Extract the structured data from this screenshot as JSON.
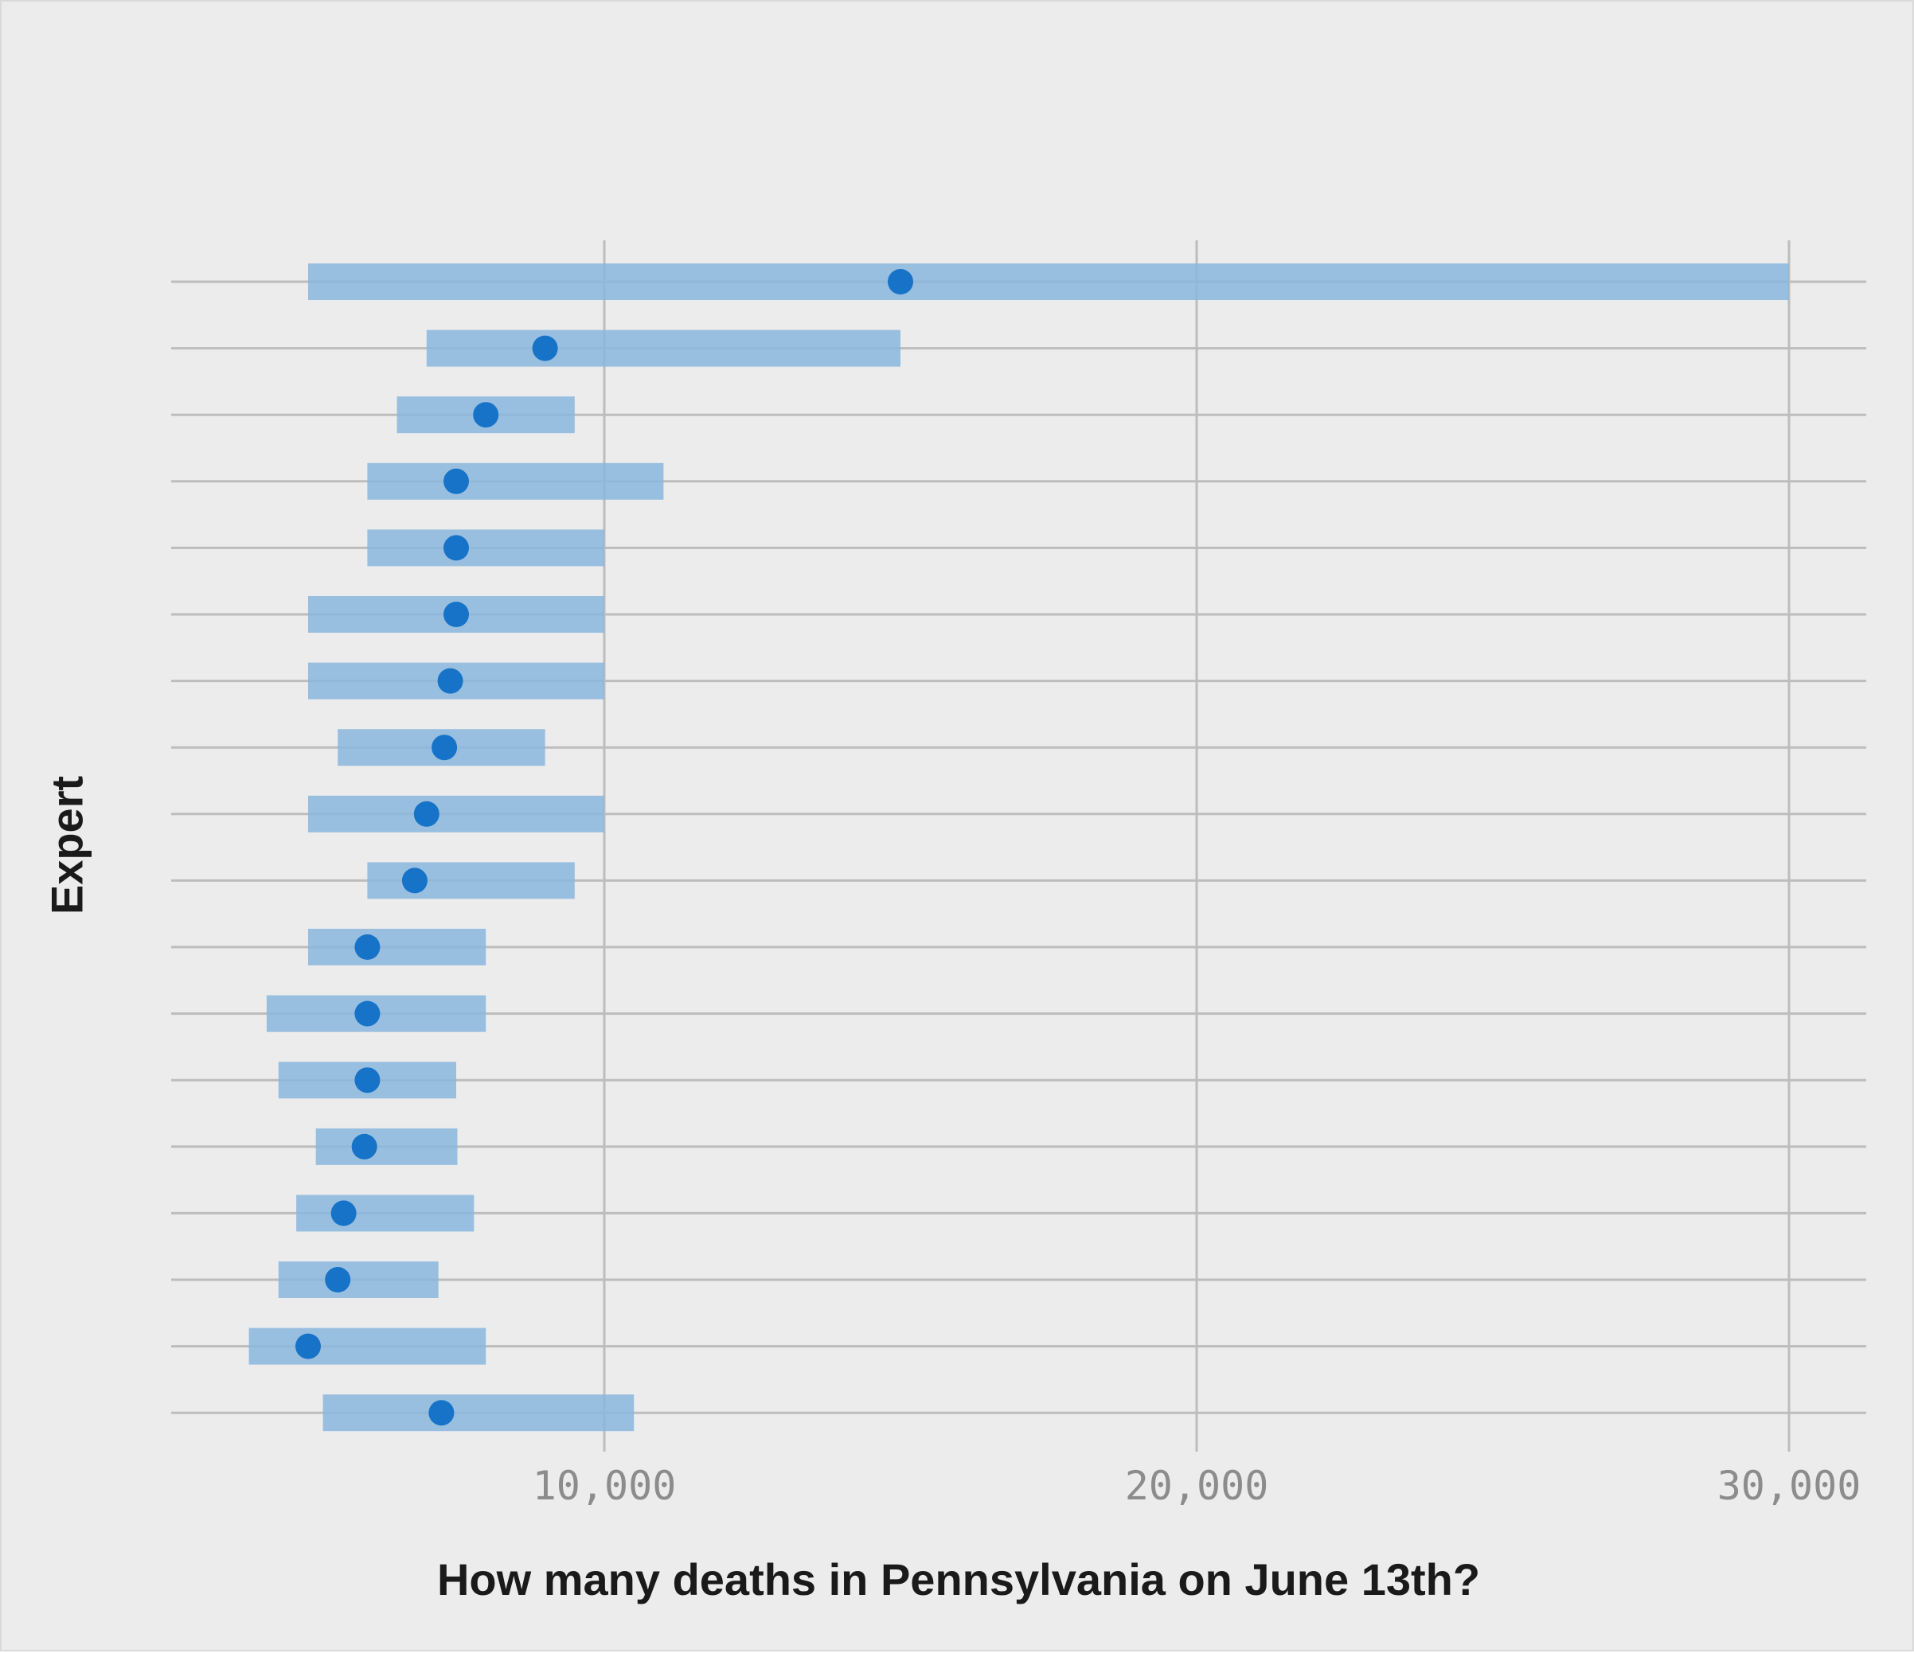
{
  "chart_data": {
    "type": "range-dot",
    "xlabel": "How many deaths in Pennsylvania on June 13th?",
    "ylabel": "Expert",
    "x_ticks": [
      10000,
      20000,
      30000
    ],
    "x_tick_labels": [
      "10,000",
      "20,000",
      "30,000"
    ],
    "xlim": [
      2700,
      31300
    ],
    "grid": "on",
    "colors": {
      "range": "#8ab6de",
      "point": "#1673c7",
      "grid": "#bdbdbd",
      "background": "#ececec"
    },
    "series": [
      {
        "low": 5000,
        "high": 30000,
        "point": 15000
      },
      {
        "low": 7000,
        "high": 15000,
        "point": 9000
      },
      {
        "low": 6500,
        "high": 9500,
        "point": 8000
      },
      {
        "low": 6000,
        "high": 11000,
        "point": 7500
      },
      {
        "low": 6000,
        "high": 10000,
        "point": 7500
      },
      {
        "low": 5000,
        "high": 10000,
        "point": 7500
      },
      {
        "low": 5000,
        "high": 10000,
        "point": 7400
      },
      {
        "low": 5500,
        "high": 9000,
        "point": 7300
      },
      {
        "low": 5000,
        "high": 10000,
        "point": 7000
      },
      {
        "low": 6000,
        "high": 9500,
        "point": 6800
      },
      {
        "low": 5000,
        "high": 8000,
        "point": 6000
      },
      {
        "low": 4300,
        "high": 8000,
        "point": 6000
      },
      {
        "low": 4500,
        "high": 7500,
        "point": 6000
      },
      {
        "low": 5130,
        "high": 7520,
        "point": 5950
      },
      {
        "low": 4800,
        "high": 7800,
        "point": 5600
      },
      {
        "low": 4500,
        "high": 7200,
        "point": 5500
      },
      {
        "low": 4000,
        "high": 8000,
        "point": 5000
      },
      {
        "low": 5250,
        "high": 10500,
        "point": 7250
      }
    ]
  }
}
